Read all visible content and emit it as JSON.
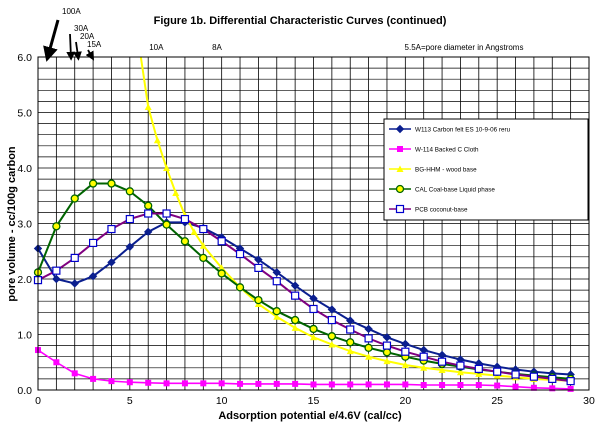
{
  "chart_data": {
    "type": "line",
    "title": "Figure 1b. Differential Characteristic Curves (continued)",
    "xlabel": "Adsorption potential e/4.6V (cal/cc)",
    "ylabel": "pore volume - cc/100g carbon",
    "xlim": [
      0,
      30
    ],
    "ylim": [
      0,
      6
    ],
    "x_ticks": [
      "0",
      "5",
      "10",
      "15",
      "20",
      "25",
      "30"
    ],
    "y_ticks": [
      "0.0",
      "1.0",
      "2.0",
      "3.0",
      "4.0",
      "5.0",
      "6.0"
    ],
    "grid": true,
    "legend_position": "right",
    "pore_annotations": [
      {
        "label": "100A",
        "x": 0.5
      },
      {
        "label": "30A",
        "x": 1.8
      },
      {
        "label": "20A",
        "x": 2.2
      },
      {
        "label": "15A",
        "x": 3.0
      },
      {
        "label": "10A",
        "x": 5.9
      },
      {
        "label": "8A",
        "x": 9.2
      }
    ],
    "note": "5.5A=pore diameter in Angstroms",
    "series": [
      {
        "name": "W113 Carbon felt ES 10-9-06 reru",
        "color": "#0b1f8f",
        "marker": "diamond",
        "points": [
          [
            0,
            2.55
          ],
          [
            1,
            2.0
          ],
          [
            2,
            1.92
          ],
          [
            3,
            2.05
          ],
          [
            4,
            2.3
          ],
          [
            5,
            2.58
          ],
          [
            6,
            2.85
          ],
          [
            7,
            3.02
          ],
          [
            8,
            3.02
          ],
          [
            9,
            2.92
          ],
          [
            10,
            2.75
          ],
          [
            11,
            2.55
          ],
          [
            12,
            2.35
          ],
          [
            13,
            2.12
          ],
          [
            14,
            1.88
          ],
          [
            15,
            1.65
          ],
          [
            16,
            1.45
          ],
          [
            17,
            1.25
          ],
          [
            18,
            1.1
          ],
          [
            19,
            0.95
          ],
          [
            20,
            0.83
          ],
          [
            21,
            0.72
          ],
          [
            22,
            0.63
          ],
          [
            23,
            0.55
          ],
          [
            24,
            0.48
          ],
          [
            25,
            0.42
          ],
          [
            26,
            0.37
          ],
          [
            27,
            0.33
          ],
          [
            28,
            0.3
          ],
          [
            29,
            0.28
          ]
        ]
      },
      {
        "name": "W-114 Backed C Cloth",
        "color": "#ff00ff",
        "marker": "square",
        "points": [
          [
            0,
            0.72
          ],
          [
            1,
            0.5
          ],
          [
            2,
            0.3
          ],
          [
            3,
            0.2
          ],
          [
            4,
            0.16
          ],
          [
            5,
            0.14
          ],
          [
            6,
            0.13
          ],
          [
            7,
            0.12
          ],
          [
            8,
            0.12
          ],
          [
            9,
            0.12
          ],
          [
            10,
            0.12
          ],
          [
            11,
            0.11
          ],
          [
            12,
            0.11
          ],
          [
            13,
            0.11
          ],
          [
            14,
            0.11
          ],
          [
            15,
            0.1
          ],
          [
            16,
            0.1
          ],
          [
            17,
            0.1
          ],
          [
            18,
            0.1
          ],
          [
            19,
            0.1
          ],
          [
            20,
            0.1
          ],
          [
            21,
            0.09
          ],
          [
            22,
            0.09
          ],
          [
            23,
            0.09
          ],
          [
            24,
            0.09
          ],
          [
            25,
            0.08
          ],
          [
            26,
            0.06
          ],
          [
            27,
            0.04
          ],
          [
            28,
            0.03
          ],
          [
            29,
            0.02
          ]
        ]
      },
      {
        "name": "BG-HHM - wood base",
        "color": "#ffff00",
        "marker": "triangle",
        "points": [
          [
            5.6,
            6.0
          ],
          [
            6,
            5.1
          ],
          [
            6.5,
            4.5
          ],
          [
            7,
            4.0
          ],
          [
            7.5,
            3.55
          ],
          [
            8,
            3.15
          ],
          [
            8.5,
            2.85
          ],
          [
            9,
            2.6
          ],
          [
            10,
            2.2
          ],
          [
            11,
            1.85
          ],
          [
            12,
            1.55
          ],
          [
            13,
            1.32
          ],
          [
            14,
            1.12
          ],
          [
            15,
            0.95
          ],
          [
            16,
            0.82
          ],
          [
            17,
            0.7
          ],
          [
            18,
            0.6
          ],
          [
            19,
            0.52
          ],
          [
            20,
            0.45
          ],
          [
            21,
            0.4
          ],
          [
            22,
            0.36
          ],
          [
            23,
            0.32
          ],
          [
            24,
            0.29
          ],
          [
            25,
            0.26
          ],
          [
            26,
            0.23
          ],
          [
            27,
            0.2
          ],
          [
            28,
            0.18
          ],
          [
            29,
            0.17
          ]
        ]
      },
      {
        "name": "CAL Coal-base Liquid phase",
        "color": "#006400",
        "marker": "circle",
        "points": [
          [
            0,
            2.12
          ],
          [
            1,
            2.95
          ],
          [
            2,
            3.45
          ],
          [
            3,
            3.72
          ],
          [
            4,
            3.72
          ],
          [
            5,
            3.58
          ],
          [
            6,
            3.32
          ],
          [
            7,
            2.98
          ],
          [
            8,
            2.68
          ],
          [
            9,
            2.38
          ],
          [
            10,
            2.1
          ],
          [
            11,
            1.85
          ],
          [
            12,
            1.62
          ],
          [
            13,
            1.42
          ],
          [
            14,
            1.26
          ],
          [
            15,
            1.1
          ],
          [
            16,
            0.97
          ],
          [
            17,
            0.86
          ],
          [
            18,
            0.76
          ],
          [
            19,
            0.68
          ],
          [
            20,
            0.6
          ],
          [
            21,
            0.53
          ],
          [
            22,
            0.47
          ],
          [
            23,
            0.42
          ],
          [
            24,
            0.37
          ],
          [
            25,
            0.33
          ],
          [
            26,
            0.29
          ],
          [
            27,
            0.26
          ],
          [
            28,
            0.23
          ],
          [
            29,
            0.2
          ]
        ]
      },
      {
        "name": "PCB coconut-base",
        "color": "#800080",
        "edge": "#0000cc",
        "marker": "square-open",
        "points": [
          [
            0,
            1.98
          ],
          [
            1,
            2.15
          ],
          [
            2,
            2.38
          ],
          [
            3,
            2.65
          ],
          [
            4,
            2.9
          ],
          [
            5,
            3.08
          ],
          [
            6,
            3.18
          ],
          [
            7,
            3.18
          ],
          [
            8,
            3.08
          ],
          [
            9,
            2.9
          ],
          [
            10,
            2.68
          ],
          [
            11,
            2.45
          ],
          [
            12,
            2.2
          ],
          [
            13,
            1.96
          ],
          [
            14,
            1.7
          ],
          [
            15,
            1.46
          ],
          [
            16,
            1.26
          ],
          [
            17,
            1.09
          ],
          [
            18,
            0.93
          ],
          [
            19,
            0.8
          ],
          [
            20,
            0.69
          ],
          [
            21,
            0.6
          ],
          [
            22,
            0.51
          ],
          [
            23,
            0.44
          ],
          [
            24,
            0.38
          ],
          [
            25,
            0.33
          ],
          [
            26,
            0.28
          ],
          [
            27,
            0.24
          ],
          [
            28,
            0.2
          ],
          [
            29,
            0.16
          ]
        ]
      }
    ]
  }
}
